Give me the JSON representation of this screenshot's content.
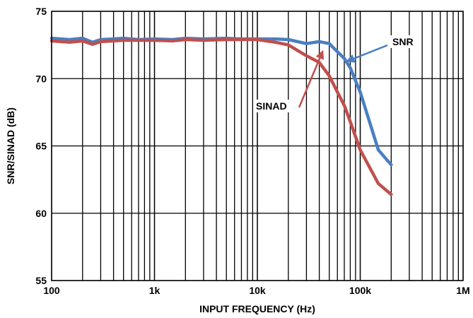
{
  "chart_data": {
    "type": "line",
    "title": "",
    "xlabel": "INPUT FREQUENCY (Hz)",
    "ylabel": "SNR/SINAD (dB)",
    "x_scale": "log",
    "xlim": [
      100,
      1000000
    ],
    "ylim": [
      55,
      75
    ],
    "grid": true,
    "x_tick_values": [
      100,
      1000,
      10000,
      100000,
      1000000
    ],
    "x_tick_labels": [
      "100",
      "1k",
      "10k",
      "100k",
      "1M"
    ],
    "y_ticks": [
      55,
      60,
      65,
      70,
      75
    ],
    "series": [
      {
        "name": "SNR",
        "color": "#4a7fc1",
        "x": [
          100,
          150,
          200,
          250,
          300,
          400,
          500,
          700,
          1000,
          1500,
          2000,
          3000,
          5000,
          7000,
          10000,
          15000,
          20000,
          30000,
          40000,
          50000,
          60000,
          70000,
          80000,
          100000,
          150000,
          200000
        ],
        "y": [
          73.0,
          72.9,
          73.0,
          72.7,
          72.9,
          72.95,
          73.0,
          72.9,
          72.95,
          72.9,
          73.0,
          72.95,
          73.0,
          72.95,
          72.95,
          72.95,
          72.9,
          72.6,
          72.75,
          72.6,
          72.0,
          71.5,
          70.8,
          69.0,
          64.7,
          63.6
        ]
      },
      {
        "name": "SINAD",
        "color": "#c0504d",
        "x": [
          100,
          150,
          200,
          250,
          300,
          400,
          500,
          700,
          1000,
          1500,
          2000,
          3000,
          5000,
          7000,
          10000,
          15000,
          20000,
          30000,
          40000,
          50000,
          60000,
          70000,
          80000,
          100000,
          150000,
          200000
        ],
        "y": [
          72.8,
          72.7,
          72.8,
          72.55,
          72.75,
          72.8,
          72.85,
          72.85,
          72.85,
          72.8,
          72.9,
          72.85,
          72.9,
          72.9,
          72.9,
          72.7,
          72.5,
          71.7,
          71.2,
          70.2,
          69.0,
          68.0,
          66.8,
          64.7,
          62.2,
          61.4
        ]
      }
    ],
    "annotations": [
      {
        "text": "SNR",
        "target_series": "SNR",
        "target_x": 75000,
        "target_y": 71.3
      },
      {
        "text": "SINAD",
        "target_series": "SINAD",
        "target_x": 43000,
        "target_y": 72.0
      }
    ]
  }
}
